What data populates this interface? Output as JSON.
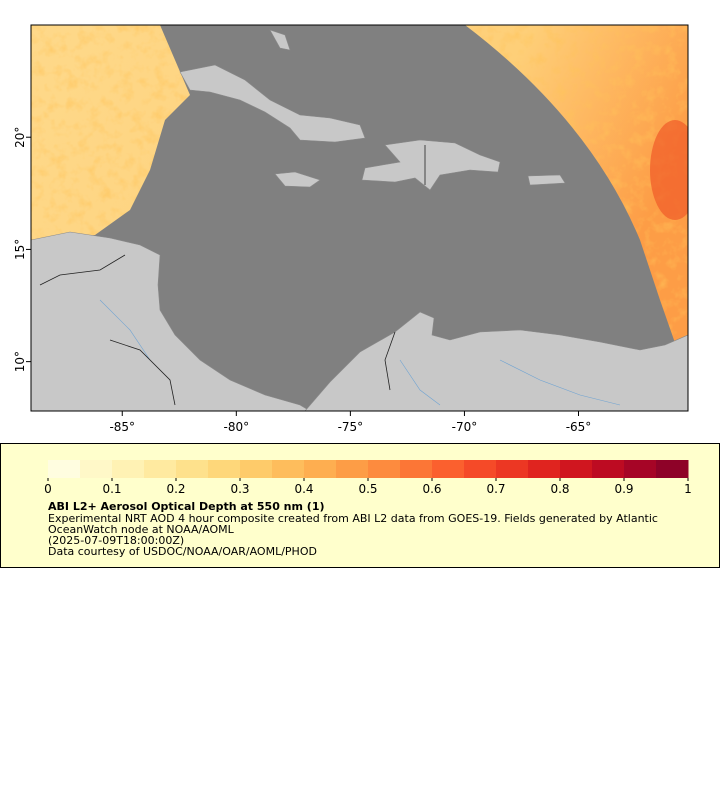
{
  "map": {
    "lonlim": [
      -89,
      -60.2
    ],
    "latlim": [
      7.8,
      25
    ],
    "lon_ticks": [
      {
        "value": -85,
        "label": "-85°"
      },
      {
        "value": -80,
        "label": "-80°"
      },
      {
        "value": -75,
        "label": "-75°"
      },
      {
        "value": -70,
        "label": "-70°"
      },
      {
        "value": -65,
        "label": "-65°"
      }
    ],
    "lat_ticks": [
      {
        "value": 10,
        "label": "10°"
      },
      {
        "value": 15,
        "label": "15°"
      },
      {
        "value": 20,
        "label": "20°"
      }
    ]
  },
  "colorbar": {
    "range": [
      0,
      1
    ],
    "ticks": [
      0,
      0.1,
      0.2,
      0.3,
      0.4,
      0.5,
      0.6,
      0.7,
      0.8,
      0.9,
      1
    ],
    "colors": [
      "#fffde0",
      "#fff8c8",
      "#fff2b4",
      "#ffeaa0",
      "#fee18c",
      "#fed77a",
      "#fecb6a",
      "#febd5c",
      "#feae50",
      "#fd9d46",
      "#fd8b3e",
      "#fc7636",
      "#fb602e",
      "#f54a28",
      "#ec3723",
      "#e0241f",
      "#d0161f",
      "#bd0b22",
      "#a60526",
      "#8e0228"
    ]
  },
  "legend": {
    "title": "ABI L2+ Aerosol Optical Depth at 550 nm (1)",
    "description": [
      "Experimental NRT AOD 4 hour composite created from ABI L2 data from GOES-19. Fields generated by Atlantic",
      "OceanWatch node at NOAA/AOML"
    ],
    "time": "(2025-07-09T18:00:00Z)",
    "credit": "Data courtesy of USDOC/NOAA/OAR/AOML/PHOD"
  }
}
